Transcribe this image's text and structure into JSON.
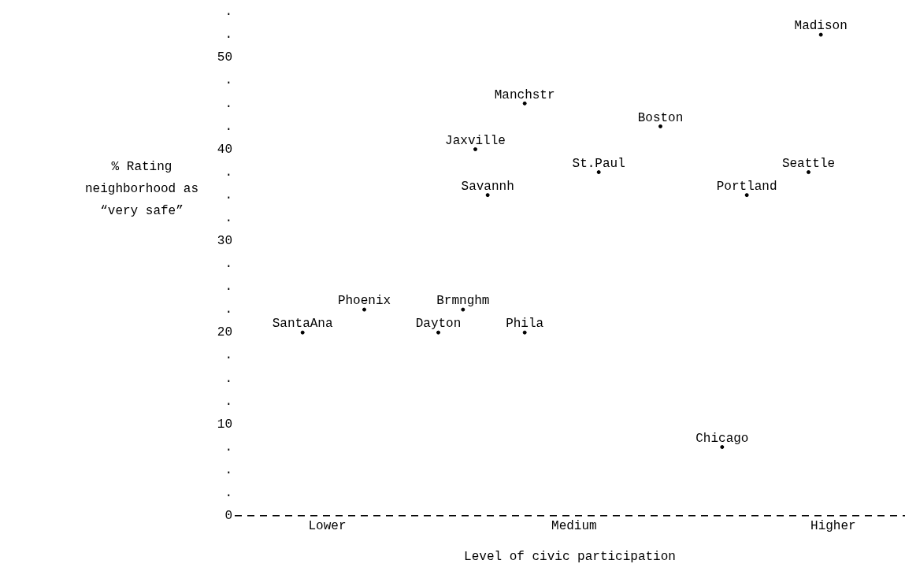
{
  "chart_data": {
    "type": "scatter",
    "xlabel": "Level of civic participation",
    "ylabel": "% Rating neighborhood as “very safe”",
    "categories": [
      null,
      null,
      null,
      null,
      null,
      null,
      null,
      "Lower",
      null,
      null,
      null,
      null,
      null,
      null,
      null,
      null,
      null,
      null,
      null,
      null,
      null,
      null,
      null,
      null,
      null,
      null,
      null,
      "Medium",
      null,
      null,
      null,
      null,
      null,
      null,
      null,
      null,
      null,
      null,
      null,
      null,
      null,
      null,
      null,
      null,
      null,
      null,
      null,
      null,
      "Higher",
      null,
      null,
      null,
      null,
      null
    ],
    "ylim": [
      0,
      55
    ],
    "yticks": [
      0,
      {
        "value": 2.5,
        "label": "."
      },
      {
        "value": 5,
        "label": "."
      },
      {
        "value": 7.5,
        "label": "."
      },
      10,
      {
        "value": 12.5,
        "label": "."
      },
      {
        "value": 15,
        "label": "."
      },
      {
        "value": 17.5,
        "label": "."
      },
      20,
      {
        "value": 22.5,
        "label": "."
      },
      {
        "value": 25,
        "label": "."
      },
      {
        "value": 27.5,
        "label": "."
      },
      30,
      {
        "value": 32.5,
        "label": "."
      },
      {
        "value": 35,
        "label": "."
      },
      {
        "value": 37.5,
        "label": "."
      },
      40,
      {
        "value": 42.5,
        "label": "."
      },
      {
        "value": 45,
        "label": "."
      },
      {
        "value": 47.5,
        "label": "."
      },
      50,
      {
        "value": 52.5,
        "label": "."
      },
      {
        "value": 55,
        "label": "."
      }
    ],
    "series": [
      {
        "color": "#000000",
        "values": [
          null,
          null,
          null,
          null,
          null,
          20,
          null,
          null,
          null,
          null,
          22.5,
          null,
          null,
          null,
          null,
          null,
          20,
          null,
          22.5,
          40,
          null,
          null,
          null,
          45,
          null,
          null,
          null,
          null,
          null,
          37.5,
          null,
          null,
          null,
          null,
          42.5,
          null,
          null,
          null,
          null,
          7.5,
          null,
          35,
          null,
          null,
          null,
          null,
          37.5,
          52.5,
          null,
          null,
          null,
          null,
          null,
          null
        ],
        "value_labels": [
          null,
          null,
          null,
          null,
          null,
          "SantaAna",
          null,
          null,
          null,
          null,
          "Phoenix",
          null,
          null,
          null,
          null,
          null,
          "Dayton",
          null,
          "Brmnghm",
          "Jaxville",
          null,
          null,
          null,
          "Manchstr",
          null,
          null,
          null,
          null,
          null,
          "St.Paul",
          null,
          null,
          null,
          null,
          "Boston",
          null,
          null,
          null,
          null,
          "Chicago",
          null,
          "Portland",
          null,
          null,
          null,
          null,
          "Seattle",
          "Madison",
          null,
          null,
          null,
          null,
          null,
          null
        ]
      },
      {
        "color": "#000000",
        "values": [
          null,
          null,
          null,
          null,
          null,
          null,
          null,
          null,
          null,
          null,
          null,
          null,
          null,
          null,
          null,
          null,
          null,
          null,
          null,
          null,
          35,
          null,
          null,
          20,
          null,
          null,
          null,
          null,
          null,
          null,
          null,
          null,
          null,
          null,
          null,
          null,
          null,
          null,
          null,
          null,
          null,
          null,
          null,
          null,
          null,
          null,
          null,
          null,
          null,
          null,
          null,
          null,
          null,
          null
        ],
        "value_labels": [
          null,
          null,
          null,
          null,
          null,
          null,
          null,
          null,
          null,
          null,
          null,
          null,
          null,
          null,
          null,
          null,
          null,
          null,
          null,
          null,
          "Savannh",
          null,
          null,
          "Phila",
          null,
          null,
          null,
          null,
          null,
          null,
          null,
          null,
          null,
          null,
          null,
          null,
          null,
          null,
          null,
          null,
          null,
          null,
          null,
          null,
          null,
          null,
          null,
          null,
          null,
          null,
          null,
          null,
          null,
          null
        ]
      }
    ],
    "marker": "circle",
    "grid": false,
    "legend": false,
    "line_style": "dashed"
  }
}
